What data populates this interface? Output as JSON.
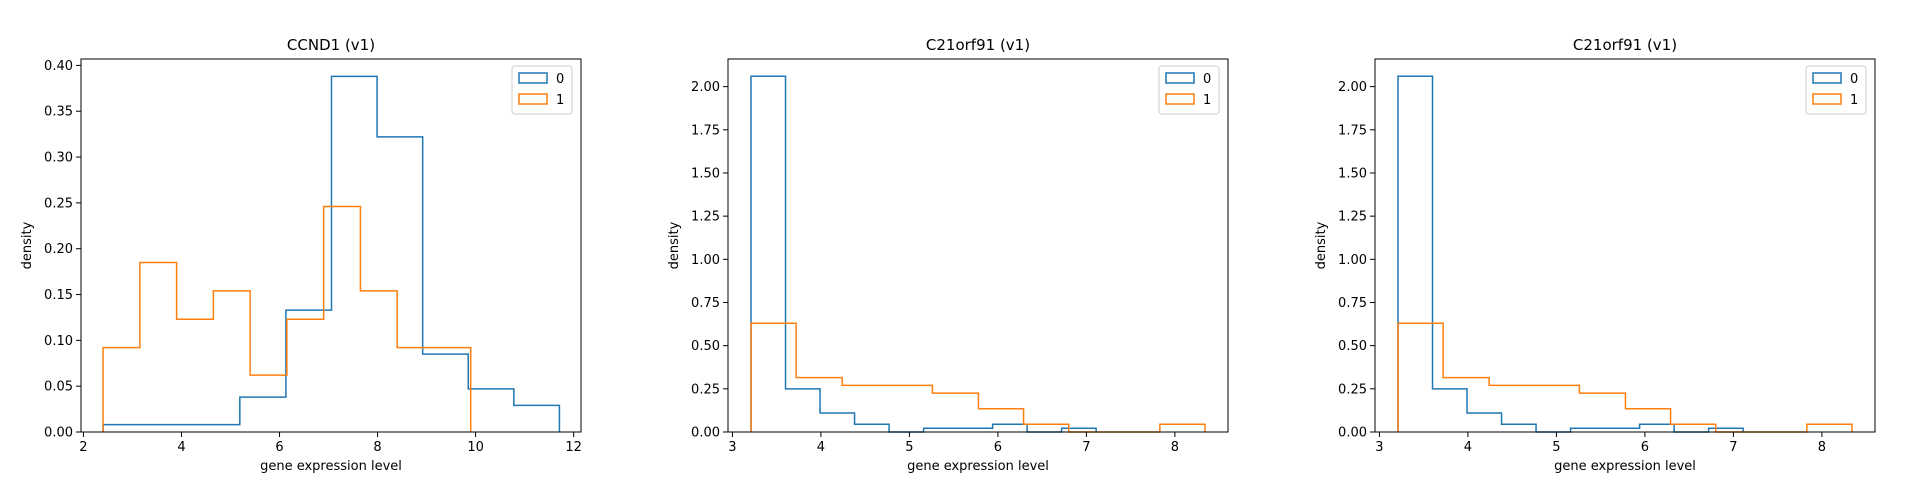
{
  "chart_data": [
    {
      "type": "histogram",
      "title": "CCND1  (v1)",
      "xlabel": "gene expression level",
      "ylabel": "density",
      "xlim": [
        1.95,
        12.15
      ],
      "ylim": [
        0,
        0.407
      ],
      "xticks": [
        2,
        4,
        6,
        8,
        10,
        12
      ],
      "yticks": [
        0.0,
        0.05,
        0.1,
        0.15,
        0.2,
        0.25,
        0.3,
        0.35,
        0.4
      ],
      "ytick_labels": [
        "0.00",
        "0.05",
        "0.10",
        "0.15",
        "0.20",
        "0.25",
        "0.30",
        "0.35",
        "0.40"
      ],
      "legend": "top-right",
      "series": [
        {
          "name": "0",
          "color": "#1f77b4",
          "edges": [
            2.4,
            3.33,
            4.26,
            5.19,
            6.13,
            7.06,
            7.99,
            8.92,
            9.85,
            10.78,
            11.71
          ],
          "values": [
            0.008,
            0.008,
            0.008,
            0.038,
            0.133,
            0.388,
            0.322,
            0.085,
            0.047,
            0.029
          ]
        },
        {
          "name": "1",
          "color": "#ff7f0e",
          "edges": [
            2.4,
            3.15,
            3.9,
            4.65,
            5.4,
            6.15,
            6.9,
            7.65,
            8.4,
            9.15,
            9.9
          ],
          "values": [
            0.092,
            0.185,
            0.123,
            0.154,
            0.062,
            0.123,
            0.246,
            0.154,
            0.092,
            0.092
          ]
        }
      ]
    },
    {
      "type": "histogram",
      "title": "C21orf91  (v1)",
      "xlabel": "gene expression level",
      "ylabel": "density",
      "xlim": [
        2.95,
        8.6
      ],
      "ylim": [
        0,
        2.16
      ],
      "xticks": [
        3,
        4,
        5,
        6,
        7,
        8
      ],
      "yticks": [
        0.0,
        0.25,
        0.5,
        0.75,
        1.0,
        1.25,
        1.5,
        1.75,
        2.0
      ],
      "ytick_labels": [
        "0.00",
        "0.25",
        "0.50",
        "0.75",
        "1.00",
        "1.25",
        "1.50",
        "1.75",
        "2.00"
      ],
      "legend": "top-right",
      "series": [
        {
          "name": "0",
          "color": "#1f77b4",
          "edges": [
            3.21,
            3.6,
            3.99,
            4.38,
            4.77,
            5.16,
            5.55,
            5.94,
            6.33,
            6.72,
            7.11
          ],
          "values": [
            2.06,
            0.25,
            0.11,
            0.045,
            0.0,
            0.022,
            0.022,
            0.045,
            0.0,
            0.022
          ]
        },
        {
          "name": "1",
          "color": "#ff7f0e",
          "edges": [
            3.21,
            3.72,
            4.24,
            4.75,
            5.26,
            5.78,
            6.29,
            6.8,
            7.31,
            7.83,
            8.34
          ],
          "values": [
            0.63,
            0.315,
            0.27,
            0.27,
            0.225,
            0.135,
            0.045,
            0.0,
            0.0,
            0.045
          ]
        }
      ]
    },
    {
      "type": "histogram",
      "title": "C21orf91  (v1)",
      "xlabel": "gene expression level",
      "ylabel": "density",
      "xlim": [
        2.95,
        8.6
      ],
      "ylim": [
        0,
        2.16
      ],
      "xticks": [
        3,
        4,
        5,
        6,
        7,
        8
      ],
      "yticks": [
        0.0,
        0.25,
        0.5,
        0.75,
        1.0,
        1.25,
        1.5,
        1.75,
        2.0
      ],
      "ytick_labels": [
        "0.00",
        "0.25",
        "0.50",
        "0.75",
        "1.00",
        "1.25",
        "1.50",
        "1.75",
        "2.00"
      ],
      "legend": "top-right",
      "series": [
        {
          "name": "0",
          "color": "#1f77b4",
          "edges": [
            3.21,
            3.6,
            3.99,
            4.38,
            4.77,
            5.16,
            5.55,
            5.94,
            6.33,
            6.72,
            7.11
          ],
          "values": [
            2.06,
            0.25,
            0.11,
            0.045,
            0.0,
            0.022,
            0.022,
            0.045,
            0.0,
            0.022
          ]
        },
        {
          "name": "1",
          "color": "#ff7f0e",
          "edges": [
            3.21,
            3.72,
            4.24,
            4.75,
            5.26,
            5.78,
            6.29,
            6.8,
            7.31,
            7.83,
            8.34
          ],
          "values": [
            0.63,
            0.315,
            0.27,
            0.27,
            0.225,
            0.135,
            0.045,
            0.0,
            0.0,
            0.045
          ]
        }
      ]
    }
  ]
}
